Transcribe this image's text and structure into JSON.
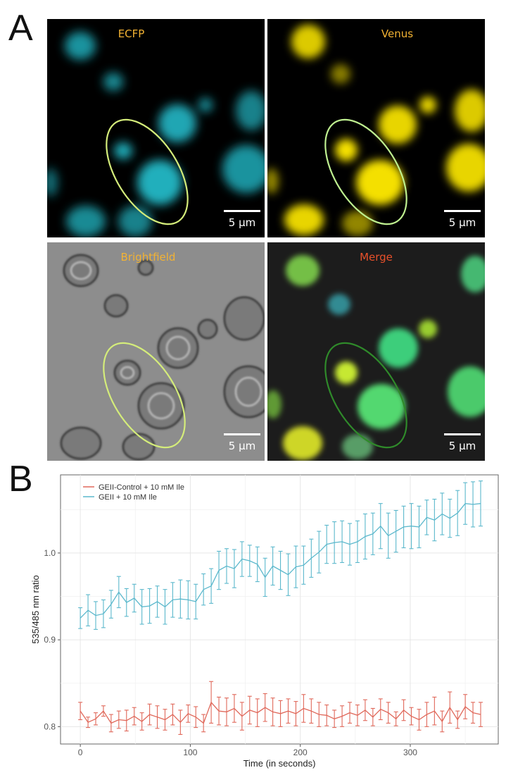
{
  "panels": {
    "a": "A",
    "b": "B"
  },
  "micrographs": [
    {
      "label": "ECFP",
      "label_color": "#f2b233",
      "scale": "5 μm"
    },
    {
      "label": "Venus",
      "label_color": "#f2b233",
      "scale": "5 μm"
    },
    {
      "label": "Brightfield",
      "label_color": "#f2b233",
      "scale": "5 μm"
    },
    {
      "label": "Merge",
      "label_color": "#e8502a",
      "scale": "5 μm"
    }
  ],
  "chart_data": {
    "type": "line",
    "xlabel": "Time (in seconds)",
    "ylabel": "535/485 nm ratio",
    "xlim": [
      -18,
      380
    ],
    "ylim": [
      0.78,
      1.09
    ],
    "xticks": [
      0,
      100,
      200,
      300
    ],
    "yticks": [
      0.8,
      0.9,
      1.0
    ],
    "ytick_labels": [
      "0.8",
      "0.9",
      "1.0"
    ],
    "grid": true,
    "legend": "top-left",
    "x": [
      0,
      7,
      14,
      21,
      28,
      35,
      42,
      49,
      56,
      63,
      70,
      77,
      84,
      91,
      98,
      105,
      112,
      119,
      126,
      133,
      140,
      147,
      154,
      161,
      168,
      175,
      182,
      189,
      196,
      203,
      210,
      217,
      224,
      231,
      238,
      245,
      252,
      259,
      266,
      273,
      280,
      287,
      294,
      301,
      308,
      315,
      322,
      329,
      336,
      343,
      350,
      357,
      364
    ],
    "series": [
      {
        "name": "GEII-Control + 10 mM Ile",
        "color": "#e0685a",
        "values": [
          0.818,
          0.805,
          0.809,
          0.818,
          0.804,
          0.808,
          0.807,
          0.812,
          0.806,
          0.814,
          0.811,
          0.808,
          0.814,
          0.805,
          0.815,
          0.811,
          0.804,
          0.828,
          0.818,
          0.817,
          0.821,
          0.812,
          0.819,
          0.816,
          0.822,
          0.817,
          0.815,
          0.818,
          0.815,
          0.821,
          0.818,
          0.814,
          0.813,
          0.809,
          0.812,
          0.816,
          0.813,
          0.819,
          0.811,
          0.82,
          0.816,
          0.809,
          0.819,
          0.812,
          0.808,
          0.814,
          0.818,
          0.806,
          0.822,
          0.808,
          0.823,
          0.816,
          0.814
        ],
        "errors": [
          0.01,
          0.006,
          0.007,
          0.006,
          0.01,
          0.01,
          0.012,
          0.01,
          0.01,
          0.012,
          0.013,
          0.012,
          0.012,
          0.014,
          0.01,
          0.012,
          0.01,
          0.024,
          0.016,
          0.016,
          0.016,
          0.016,
          0.016,
          0.016,
          0.016,
          0.016,
          0.015,
          0.014,
          0.014,
          0.016,
          0.014,
          0.014,
          0.012,
          0.01,
          0.012,
          0.012,
          0.012,
          0.012,
          0.01,
          0.012,
          0.012,
          0.008,
          0.012,
          0.01,
          0.012,
          0.014,
          0.016,
          0.012,
          0.018,
          0.01,
          0.014,
          0.012,
          0.014
        ]
      },
      {
        "name": "GEII + 10 mM Ile",
        "color": "#5bb8cc",
        "values": [
          0.925,
          0.934,
          0.928,
          0.93,
          0.941,
          0.955,
          0.943,
          0.948,
          0.938,
          0.939,
          0.944,
          0.938,
          0.946,
          0.947,
          0.946,
          0.944,
          0.958,
          0.962,
          0.98,
          0.985,
          0.982,
          0.993,
          0.991,
          0.987,
          0.972,
          0.985,
          0.98,
          0.975,
          0.984,
          0.986,
          0.994,
          1.001,
          1.01,
          1.012,
          1.013,
          1.01,
          1.013,
          1.019,
          1.022,
          1.031,
          1.02,
          1.025,
          1.03,
          1.031,
          1.03,
          1.041,
          1.038,
          1.045,
          1.04,
          1.046,
          1.057,
          1.056,
          1.057
        ],
        "errors": [
          0.012,
          0.018,
          0.016,
          0.016,
          0.016,
          0.018,
          0.016,
          0.016,
          0.02,
          0.02,
          0.018,
          0.02,
          0.02,
          0.022,
          0.022,
          0.02,
          0.018,
          0.02,
          0.022,
          0.02,
          0.022,
          0.02,
          0.018,
          0.02,
          0.022,
          0.022,
          0.022,
          0.024,
          0.024,
          0.022,
          0.022,
          0.024,
          0.022,
          0.024,
          0.024,
          0.024,
          0.024,
          0.026,
          0.024,
          0.026,
          0.026,
          0.024,
          0.024,
          0.026,
          0.024,
          0.02,
          0.024,
          0.024,
          0.022,
          0.026,
          0.024,
          0.026,
          0.026
        ]
      }
    ]
  }
}
